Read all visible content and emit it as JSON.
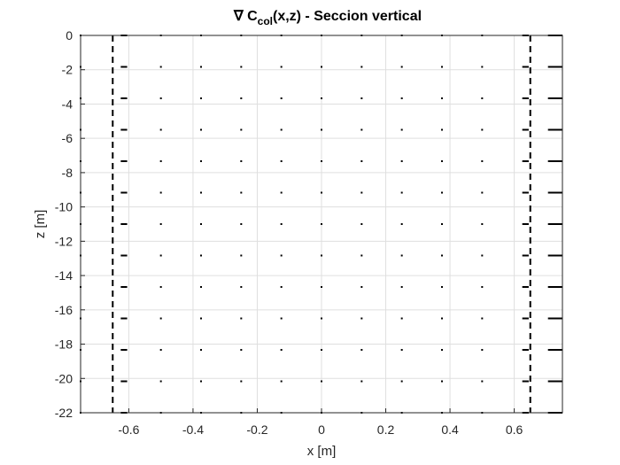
{
  "chart_data": {
    "type": "quiver",
    "title": {
      "prefix": "∇ C",
      "subscript": "col",
      "suffix": "(x,z) - Seccion vertical"
    },
    "xlabel": "x [m]",
    "ylabel": "z [m]",
    "xlim": [
      -0.75,
      0.75
    ],
    "ylim": [
      -22,
      0
    ],
    "xticks": [
      -0.6,
      -0.4,
      -0.2,
      0,
      0.2,
      0.4,
      0.6
    ],
    "xtick_labels": [
      "-0.6",
      "-0.4",
      "-0.2",
      "0",
      "0.2",
      "0.4",
      "0.6"
    ],
    "yticks": [
      0,
      -2,
      -4,
      -6,
      -8,
      -10,
      -12,
      -14,
      -16,
      -18,
      -20,
      -22
    ],
    "ytick_labels": [
      "0",
      "-2",
      "-4",
      "-6",
      "-8",
      "-10",
      "-12",
      "-14",
      "-16",
      "-18",
      "-20",
      "-22"
    ],
    "grid": true,
    "boundaries": [
      {
        "x": -0.65,
        "style": "dashed",
        "color": "#000000"
      },
      {
        "x": 0.65,
        "style": "dashed",
        "color": "#000000"
      }
    ],
    "vector_grid": {
      "x": [
        -0.75,
        -0.625,
        -0.5,
        -0.375,
        -0.25,
        -0.125,
        0,
        0.125,
        0.25,
        0.375,
        0.5,
        0.625,
        0.75
      ],
      "z": [
        0,
        -1.833,
        -3.667,
        -5.5,
        -7.333,
        -9.167,
        -11,
        -12.833,
        -14.667,
        -16.5,
        -18.333,
        -20.167,
        -22
      ],
      "edge_vectors": [
        {
          "x": -0.625,
          "u": 0.02
        },
        {
          "x": 0.625,
          "u": 0.02
        },
        {
          "x": 0.75,
          "u": -0.045
        }
      ],
      "interior_u": 0,
      "color": "#000000"
    }
  }
}
